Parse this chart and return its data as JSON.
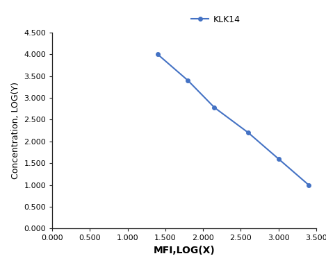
{
  "x": [
    1.4,
    1.8,
    2.15,
    2.6,
    3.0,
    3.4
  ],
  "y": [
    4.0,
    3.4,
    2.78,
    2.2,
    1.6,
    1.0
  ],
  "line_color": "#4472C4",
  "marker": "o",
  "marker_size": 4,
  "legend_label": "KLK14",
  "xlabel": "MFI,LOG(X)",
  "ylabel": "Concentration, LOG(Y)",
  "xlim": [
    0.0,
    3.5
  ],
  "ylim": [
    0.0,
    4.5
  ],
  "xticks": [
    0.0,
    0.5,
    1.0,
    1.5,
    2.0,
    2.5,
    3.0,
    3.5
  ],
  "yticks": [
    0.0,
    0.5,
    1.0,
    1.5,
    2.0,
    2.5,
    3.0,
    3.5,
    4.0,
    4.5
  ],
  "background_color": "#ffffff",
  "xlabel_fontsize": 10,
  "ylabel_fontsize": 9,
  "tick_fontsize": 8,
  "legend_fontsize": 9,
  "spine_color": "#222222"
}
